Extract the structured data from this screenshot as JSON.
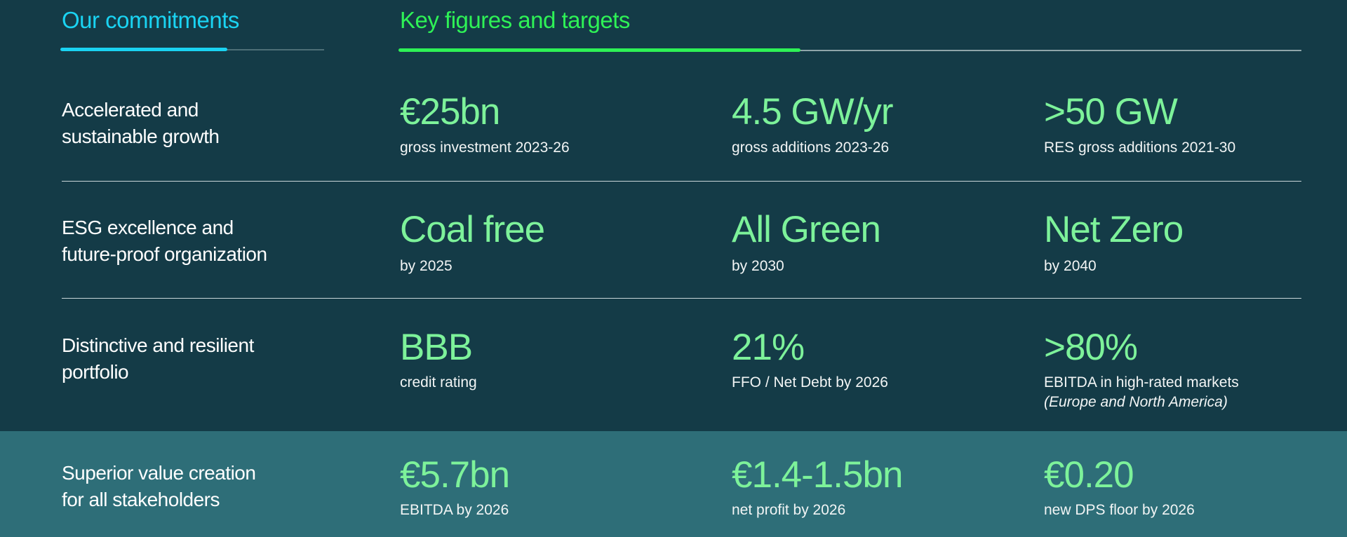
{
  "header": {
    "commitments_title": "Our commitments",
    "figures_title": "Key figures and targets"
  },
  "colors": {
    "background": "#143b47",
    "highlight_band": "#2e6e78",
    "cyan_accent": "#1ad3f2",
    "green_accent": "#2ef256",
    "figure_green": "#7df29a"
  },
  "rows": [
    {
      "label_line1": "Accelerated and",
      "label_line2": "sustainable growth",
      "figures": [
        {
          "value": "€25bn",
          "caption": "gross investment 2023-26"
        },
        {
          "value": "4.5 GW/yr",
          "caption": "gross additions 2023-26"
        },
        {
          "value": ">50 GW",
          "caption": "RES gross additions 2021-30"
        }
      ]
    },
    {
      "label_line1": "ESG excellence and",
      "label_line2": "future-proof organization",
      "figures": [
        {
          "value": "Coal free",
          "caption": "by 2025"
        },
        {
          "value": "All Green",
          "caption": "by 2030"
        },
        {
          "value": "Net Zero",
          "caption": "by 2040"
        }
      ]
    },
    {
      "label_line1": "Distinctive and resilient",
      "label_line2": "portfolio",
      "figures": [
        {
          "value": "BBB",
          "caption": "credit rating"
        },
        {
          "value": "21%",
          "caption": "FFO / Net Debt by 2026"
        },
        {
          "value": ">80%",
          "caption": "EBITDA in high-rated markets",
          "note": "(Europe and North America)"
        }
      ]
    },
    {
      "label_line1": "Superior value creation",
      "label_line2": "for all stakeholders",
      "figures": [
        {
          "value": "€5.7bn",
          "caption": "EBITDA by 2026"
        },
        {
          "value": "€1.4-1.5bn",
          "caption": "net profit by 2026"
        },
        {
          "value": "€0.20",
          "caption": "new DPS floor by 2026"
        }
      ]
    }
  ]
}
